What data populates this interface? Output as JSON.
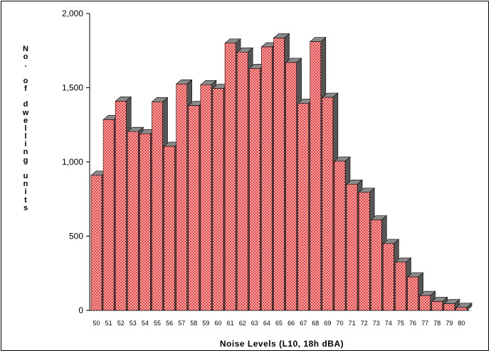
{
  "chart_data": {
    "type": "bar",
    "title": "",
    "xlabel": "Noise Levels (L10, 18h dBA)",
    "ylabel": "No. of dwelling units",
    "ylim": [
      0,
      2000
    ],
    "yticks": [
      "0",
      "500",
      "1,000",
      "1,500",
      "2,000"
    ],
    "ytick_values": [
      0,
      500,
      1000,
      1500,
      2000
    ],
    "categories": [
      "50",
      "51",
      "52",
      "53",
      "54",
      "55",
      "56",
      "57",
      "58",
      "59",
      "60",
      "61",
      "62",
      "63",
      "64",
      "65",
      "66",
      "67",
      "68",
      "69",
      "70",
      "71",
      "72",
      "73",
      "74",
      "75",
      "76",
      "77",
      "78",
      "79",
      "80"
    ],
    "values": [
      910,
      1285,
      1410,
      1205,
      1190,
      1405,
      1105,
      1525,
      1380,
      1520,
      1495,
      1800,
      1740,
      1630,
      1775,
      1835,
      1670,
      1395,
      1810,
      1435,
      1005,
      850,
      795,
      610,
      450,
      325,
      225,
      100,
      60,
      45,
      20
    ],
    "bar_style": "3d red crosshatch",
    "colors": {
      "bar_fill": "#ff4b4b",
      "bar_side": "#555555",
      "bar_top": "#8a8a8a"
    }
  }
}
